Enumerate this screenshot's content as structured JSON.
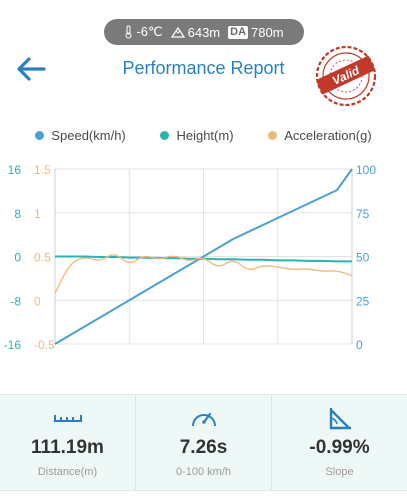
{
  "status_bar": {
    "temperature": "-6℃",
    "altitude": "643m",
    "da_label": "DA",
    "density_altitude": "780m"
  },
  "header": {
    "title": "Performance Report",
    "stamp_text": "Valid"
  },
  "colors": {
    "speed": "#4a9fd6",
    "height": "#2bb3b1",
    "acceleration": "#f0b878",
    "title": "#2a7fc0"
  },
  "chart_data": {
    "type": "line",
    "title": "",
    "legend_position": "top",
    "grid": true,
    "x": [
      0,
      1,
      2,
      3,
      4,
      5,
      6,
      7,
      8,
      9,
      10,
      11,
      12,
      13,
      14,
      15,
      16,
      17,
      18,
      19,
      20
    ],
    "series": [
      {
        "name": "Speed(km/h)",
        "axis": "right",
        "values": [
          0,
          5,
          10,
          15,
          20,
          25,
          30,
          35,
          40,
          45,
          50,
          55,
          60,
          64,
          68,
          72,
          76,
          80,
          84,
          88,
          100
        ]
      },
      {
        "name": "Height(m)",
        "axis": "left-outer",
        "values": [
          0,
          0,
          0,
          -0.1,
          -0.1,
          -0.2,
          -0.2,
          -0.3,
          -0.3,
          -0.4,
          -0.4,
          -0.5,
          -0.5,
          -0.6,
          -0.6,
          -0.7,
          -0.7,
          -0.8,
          -0.8,
          -0.9,
          -0.9
        ]
      },
      {
        "name": "Acceleration(g)",
        "axis": "left-inner",
        "values": [
          0.08,
          0.42,
          0.5,
          0.44,
          0.55,
          0.4,
          0.52,
          0.46,
          0.52,
          0.44,
          0.5,
          0.36,
          0.48,
          0.33,
          0.4,
          0.38,
          0.35,
          0.36,
          0.33,
          0.34,
          0.28
        ]
      }
    ],
    "y_axis_left_outer": {
      "ticks": [
        "16",
        "8",
        "0",
        "-8",
        "-16"
      ],
      "range": [
        -16,
        16
      ]
    },
    "y_axis_left_inner": {
      "ticks": [
        "1.5",
        "1",
        "0.5",
        "0",
        "-0.5"
      ],
      "range": [
        -0.5,
        1.5
      ]
    },
    "y_axis_right": {
      "ticks": [
        "100",
        "75",
        "50",
        "25",
        "0"
      ],
      "range": [
        0,
        100
      ]
    }
  },
  "stats": [
    {
      "icon": "ruler-icon",
      "value": "111.19m",
      "label": "Distance(m)"
    },
    {
      "icon": "speedometer-icon",
      "value": "7.26s",
      "label": "0-100 km/h"
    },
    {
      "icon": "slope-icon",
      "value": "-0.99%",
      "label": "Slope"
    }
  ]
}
